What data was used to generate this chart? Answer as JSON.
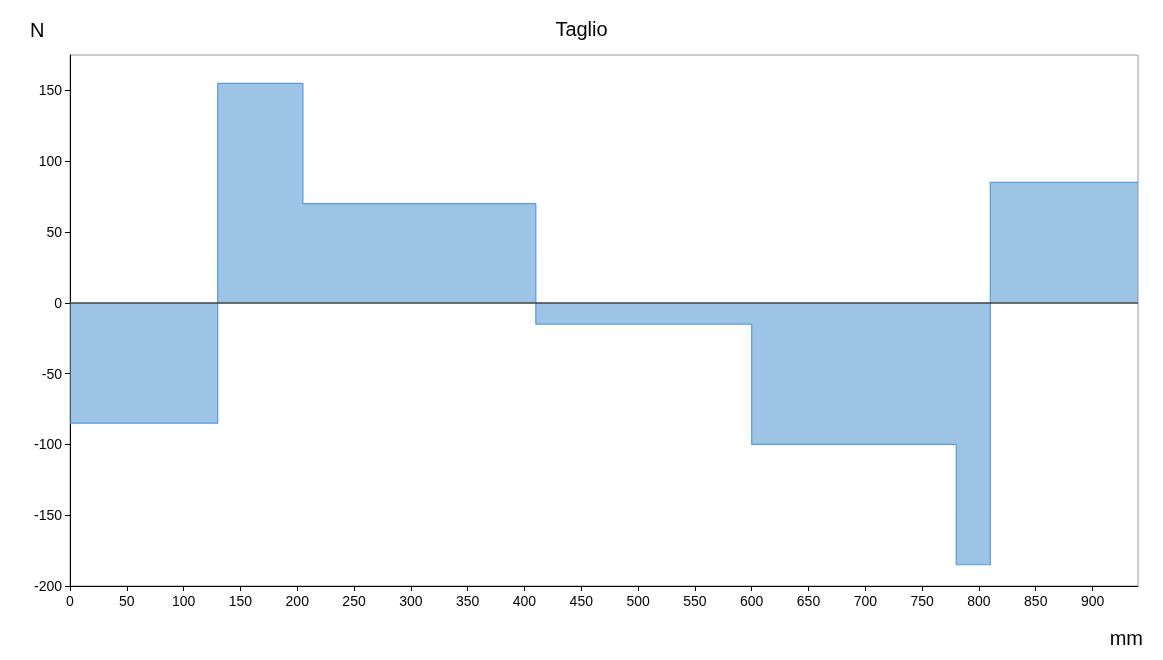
{
  "chart_data": {
    "type": "step",
    "title": "Taglio",
    "xlabel": "mm",
    "ylabel": "N",
    "x": [
      0,
      130,
      205,
      410,
      600,
      780,
      810,
      940
    ],
    "series": [
      {
        "color": "#5b9bd5",
        "values": [
          -85,
          155,
          70,
          -15,
          -100,
          -185,
          85,
          85
        ]
      }
    ],
    "xlim": [
      0,
      940
    ],
    "xticks": [
      0,
      50,
      100,
      150,
      200,
      250,
      300,
      350,
      400,
      450,
      500,
      550,
      600,
      650,
      700,
      750,
      800,
      850,
      900
    ],
    "ylim": [
      -200,
      175
    ],
    "yticks": [
      -200,
      -150,
      -100,
      -50,
      0,
      50,
      100,
      150
    ],
    "ref_lines": [
      {
        "axis": "y",
        "value": 0,
        "color": "#404040"
      }
    ],
    "grid": false,
    "marker": "none"
  }
}
